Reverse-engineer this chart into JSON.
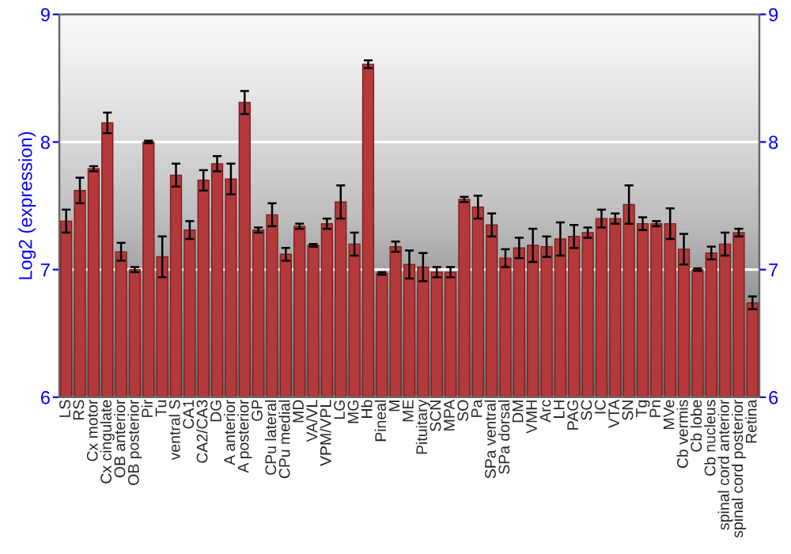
{
  "chart_data": {
    "type": "bar",
    "ylabel": "Log2 (expression)",
    "categories": [
      "LS",
      "RS",
      "Cx motor",
      "Cx cingulate",
      "OB anterior",
      "OB posterior",
      "Pir",
      "Tu",
      "ventral S",
      "CA1",
      "CA2/CA3",
      "DG",
      "A anterior",
      "A posterior",
      "GP",
      "CPu lateral",
      "CPu medial",
      "MD",
      "VA/VL",
      "VPM/VPL",
      "LG",
      "MG",
      "Hb",
      "Pineal",
      "M",
      "ME",
      "Pituitary",
      "SCN",
      "MPA",
      "SO",
      "Pa",
      "SPa ventral",
      "SPa dorsal",
      "DM",
      "VMH",
      "Arc",
      "LH",
      "PAG",
      "SC",
      "IC",
      "VTA",
      "SN",
      "Tg",
      "Pn",
      "MVe",
      "Cb vermis",
      "Cb lobe",
      "Cb nucleus",
      "spinal cord anterior",
      "spinal cord posterior",
      "Retina"
    ],
    "values": [
      7.38,
      7.62,
      7.79,
      8.15,
      7.14,
      7.0,
      8.0,
      7.1,
      7.74,
      7.31,
      7.7,
      7.83,
      7.71,
      8.31,
      7.31,
      7.43,
      7.12,
      7.34,
      7.19,
      7.36,
      7.53,
      7.2,
      8.61,
      6.97,
      7.18,
      7.04,
      7.02,
      6.98,
      6.98,
      7.55,
      7.49,
      7.35,
      7.09,
      7.17,
      7.19,
      7.18,
      7.24,
      7.26,
      7.29,
      7.4,
      7.4,
      7.51,
      7.36,
      7.36,
      7.36,
      7.16,
      7.0,
      7.13,
      7.2,
      7.29,
      6.74
    ],
    "errors": [
      0.09,
      0.1,
      0.02,
      0.08,
      0.07,
      0.02,
      0.01,
      0.16,
      0.09,
      0.07,
      0.08,
      0.06,
      0.12,
      0.09,
      0.02,
      0.09,
      0.05,
      0.02,
      0.01,
      0.04,
      0.13,
      0.09,
      0.03,
      0.01,
      0.04,
      0.11,
      0.11,
      0.04,
      0.04,
      0.02,
      0.09,
      0.09,
      0.07,
      0.08,
      0.13,
      0.08,
      0.13,
      0.09,
      0.04,
      0.07,
      0.04,
      0.15,
      0.05,
      0.02,
      0.12,
      0.12,
      0.01,
      0.05,
      0.09,
      0.03,
      0.05
    ],
    "color": "#b3393a",
    "ylim": [
      6,
      9
    ],
    "yticks": [
      6,
      7,
      8,
      9
    ],
    "y2lim": [
      6,
      9
    ],
    "y2ticks": [
      6,
      7,
      8,
      9
    ],
    "grid": "y",
    "legend": false
  }
}
